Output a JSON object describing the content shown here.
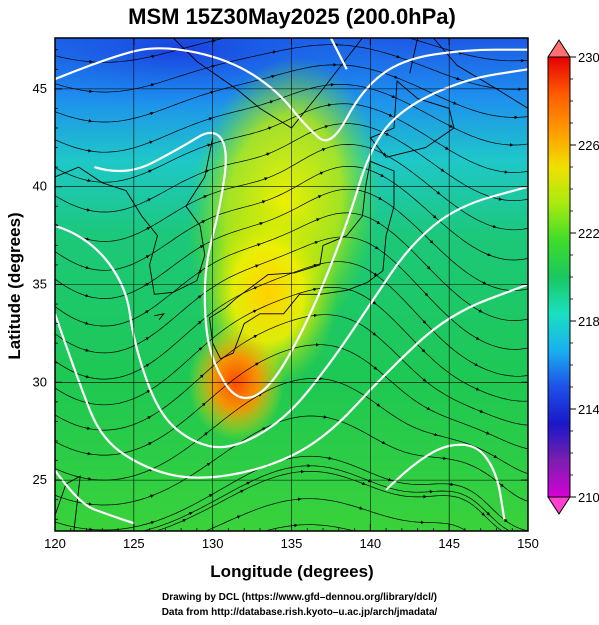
{
  "chart_data": {
    "type": "heatmap",
    "title": "MSM 15Z30May2025 (200.0hPa)",
    "xlabel": "Longitude (degrees)",
    "ylabel": "Latitude  (degrees)",
    "xlim": [
      120,
      150
    ],
    "ylim": [
      22.4,
      47.6
    ],
    "x_ticks": [
      120,
      125,
      130,
      135,
      140,
      145,
      150
    ],
    "y_ticks": [
      25,
      30,
      35,
      40,
      45
    ],
    "x_tick_labels": [
      "120",
      "125",
      "130",
      "135",
      "140",
      "145",
      "150"
    ],
    "y_tick_labels": [
      "25",
      "30",
      "35",
      "40",
      "45"
    ],
    "grid": true,
    "field": "temperature (K), shaded; wind streamlines; white contours",
    "colorbar": {
      "min": 210,
      "max": 230,
      "ticks": [
        210,
        214,
        218,
        222,
        226,
        230
      ],
      "tick_labels": [
        "210",
        "214",
        "218",
        "222",
        "226",
        "230"
      ],
      "colors": [
        "#d600d6",
        "#7a1fb0",
        "#1a18c8",
        "#1d50e8",
        "#1ab0f0",
        "#19e0c0",
        "#1ac860",
        "#3fdc2a",
        "#a8ea10",
        "#f0e000",
        "#ff9a00",
        "#ff5a00",
        "#e60000"
      ]
    },
    "features": {
      "warm_core": {
        "lon": 131.5,
        "lat": 30.0,
        "value": 229.5
      },
      "warm_ridge": [
        {
          "lon": 132.5,
          "lat": 31.5,
          "value": 228
        },
        {
          "lon": 133.5,
          "lat": 34.5,
          "value": 225
        },
        {
          "lon": 134.5,
          "lat": 39.0,
          "value": 223
        }
      ],
      "cold_region": {
        "lon": 128,
        "lat": 47,
        "value": 215
      }
    }
  },
  "footer": {
    "line1": "Drawing by DCL (https://www.gfd–dennou.org/library/dcl/)",
    "line2": "Data from http://database.rish.kyoto–u.ac.jp/arch/jmadata/"
  }
}
